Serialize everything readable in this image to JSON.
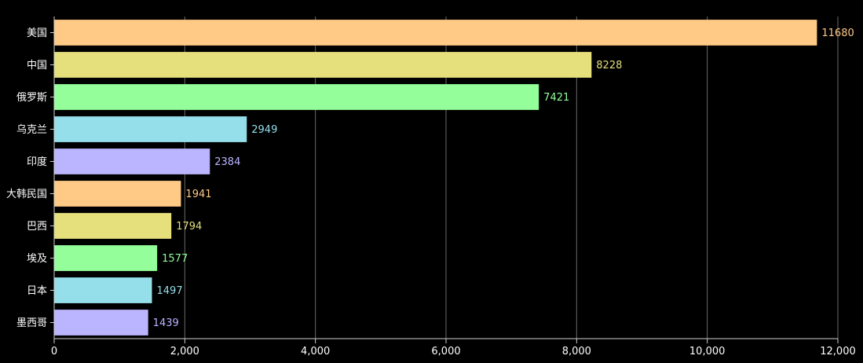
{
  "chart_data": {
    "type": "bar",
    "orientation": "horizontal",
    "categories": [
      "美国",
      "中国",
      "俄罗斯",
      "乌克兰",
      "印度",
      "大韩民国",
      "巴西",
      "埃及",
      "日本",
      "墨西哥"
    ],
    "values": [
      11680,
      8228,
      7421,
      2949,
      2384,
      1941,
      1794,
      1577,
      1497,
      1439
    ],
    "value_labels": [
      "11680",
      "8228",
      "7421",
      "2949",
      "2384",
      "1941",
      "1794",
      "1577",
      "1497",
      "1439"
    ],
    "colors": [
      "#ffc986",
      "#e5df7c",
      "#94ff9a",
      "#94dfea",
      "#bbb4ff",
      "#ffc986",
      "#e5df7c",
      "#94ff9a",
      "#94dfea",
      "#bbb4ff"
    ],
    "xlim": [
      0,
      12000
    ],
    "xticks": [
      0,
      2000,
      4000,
      6000,
      8000,
      10000,
      12000
    ],
    "xtick_labels": [
      "0",
      "2,000",
      "4,000",
      "6,000",
      "8,000",
      "10,000",
      "12,000"
    ],
    "title": "",
    "xlabel": "",
    "ylabel": "",
    "grid": true,
    "legend": "none",
    "background": "#000000"
  }
}
